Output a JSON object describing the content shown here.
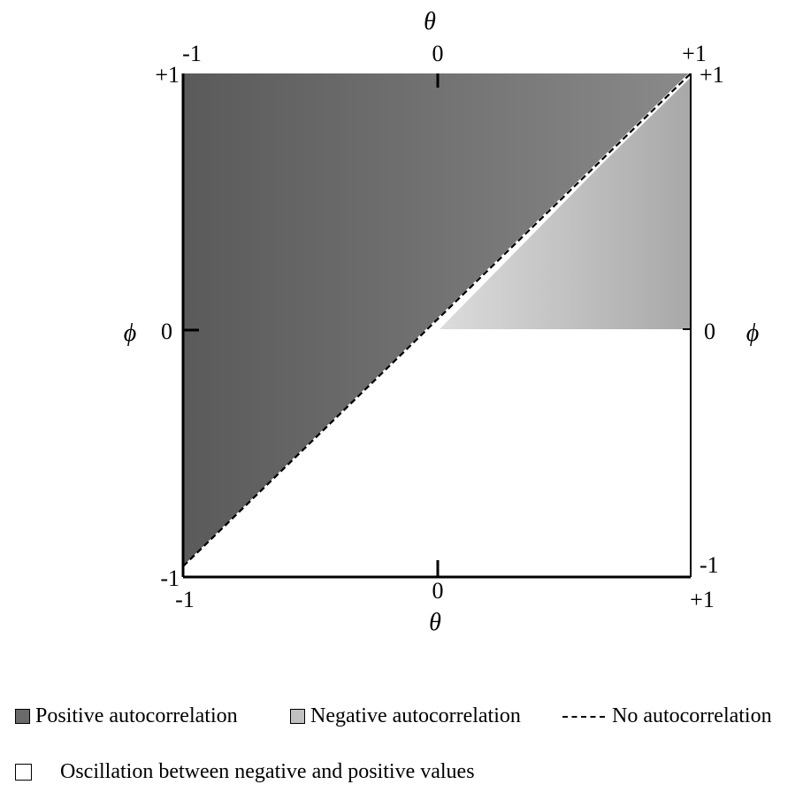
{
  "axes": {
    "theta_symbol": "θ",
    "phi_symbol": "ϕ",
    "top_left": "-1",
    "top_zero": "0",
    "top_right": "+1",
    "left_top": "+1",
    "left_zero": "0",
    "left_bottom": "-1",
    "right_top": "+1",
    "right_zero": "0",
    "right_bottom": "-1",
    "bottom_left": "-1",
    "bottom_zero": "0",
    "bottom_right": "+1"
  },
  "regions": {
    "positive_color_dark": "#5a5a5a",
    "positive_color_light": "#8a8a8a",
    "negative_color_light": "#d2d2d2",
    "negative_color_dark": "#a8a8a8",
    "oscillation_color": "#ffffff"
  },
  "legend": {
    "positive": "Positive autocorrelation",
    "negative": "Negative autocorrelation",
    "none": "No autocorrelation",
    "oscillation": "Oscillation between negative and positive values"
  }
}
